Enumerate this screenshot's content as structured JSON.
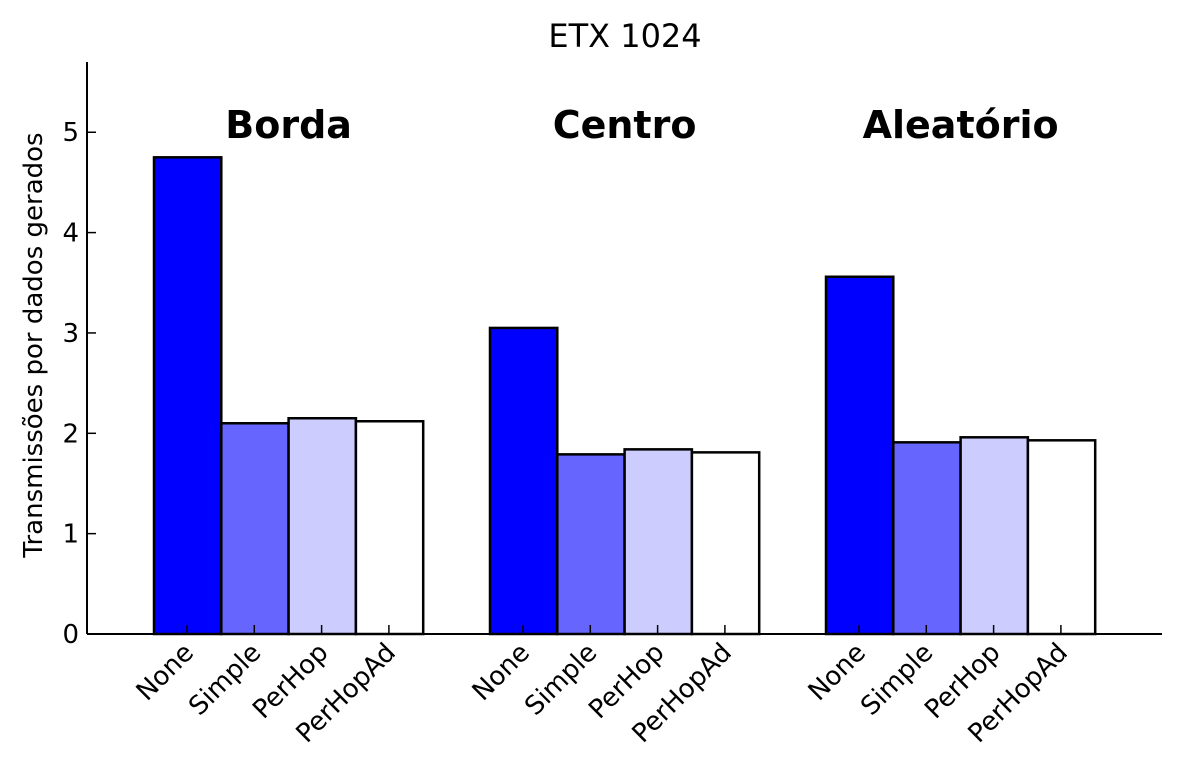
{
  "chart_data": {
    "type": "bar",
    "title": "ETX 1024",
    "xlabel": "",
    "ylabel": "Transmissões por dados gerados",
    "ylim": [
      0,
      5.7
    ],
    "yticks": [
      0,
      1,
      2,
      3,
      4,
      5
    ],
    "grid": false,
    "groups": [
      "Borda",
      "Centro",
      "Aleatório"
    ],
    "categories": [
      "None",
      "Simple",
      "PerHop",
      "PerHopAd"
    ],
    "series": [
      {
        "group": "Borda",
        "values": [
          4.75,
          2.1,
          2.15,
          2.12
        ]
      },
      {
        "group": "Centro",
        "values": [
          3.05,
          1.79,
          1.84,
          1.81
        ]
      },
      {
        "group": "Aleatório",
        "values": [
          3.56,
          1.91,
          1.96,
          1.93
        ]
      }
    ],
    "colors": [
      "#0000ff",
      "#6666ff",
      "#ccccff",
      "#ffffff"
    ]
  }
}
